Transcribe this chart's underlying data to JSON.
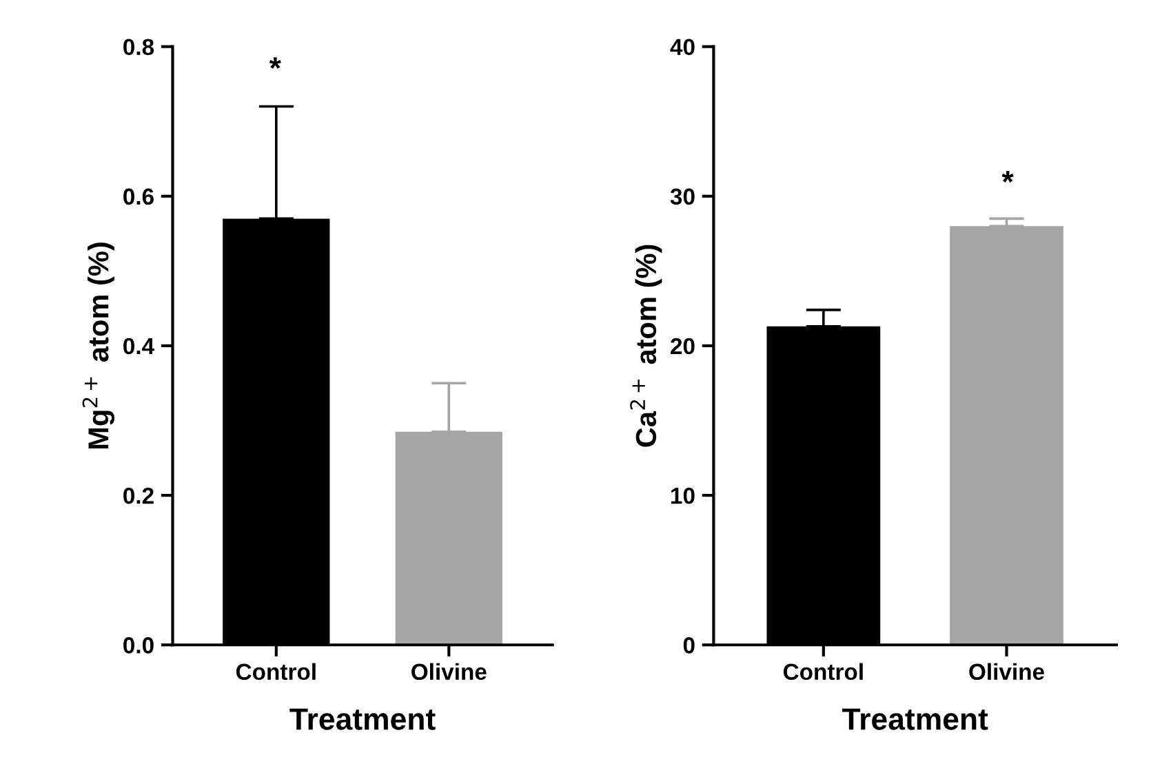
{
  "chart_data": [
    {
      "type": "bar",
      "categories": [
        "Control",
        "Olivine"
      ],
      "values": [
        0.57,
        0.285
      ],
      "colors": [
        "#000000",
        "#a5a5a5"
      ],
      "errors": [
        [
          0.57,
          0.72
        ],
        [
          0.285,
          0.35
        ]
      ],
      "xlabel": "Treatment",
      "ylabel": "Mg$^{2+}$ atom (%)",
      "ylim": [
        0,
        0.8
      ],
      "yticks": [
        {
          "value": 0,
          "label": "0.0"
        },
        {
          "value": 0.2,
          "label": "0.2"
        },
        {
          "value": 0.4,
          "label": "0.4"
        },
        {
          "value": 0.6,
          "label": "0.6"
        },
        {
          "value": 0.8,
          "label": "0.8"
        }
      ],
      "annotations": [
        "*"
      ]
    },
    {
      "type": "bar",
      "categories": [
        "Control",
        "Olivine"
      ],
      "values": [
        21.3,
        28.0
      ],
      "colors": [
        "#000000",
        "#a5a5a5"
      ],
      "errors": [
        [
          21.3,
          22.4
        ],
        [
          28.0,
          28.5
        ]
      ],
      "xlabel": "Treatment",
      "ylabel": "Ca$^{2+}$ atom (%)",
      "ylim": [
        0,
        40
      ],
      "yticks": [
        0,
        10,
        20,
        30,
        40
      ],
      "annotations": [
        "*"
      ]
    }
  ]
}
